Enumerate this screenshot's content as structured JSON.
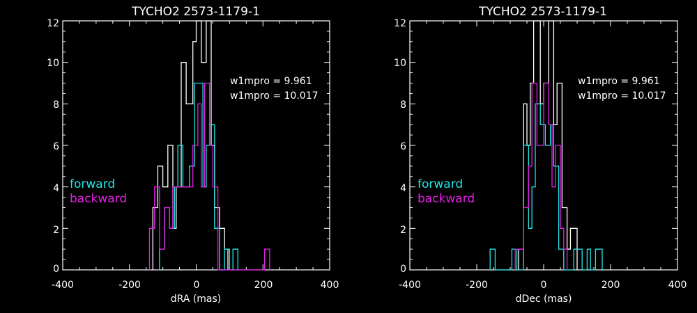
{
  "chart_data": [
    {
      "type": "histogram",
      "title": "TYCHO2 2573-1179-1",
      "xlabel": "dRA (mas)",
      "ylabel": "",
      "xlim": [
        -400,
        400
      ],
      "ylim": [
        0,
        12
      ],
      "xticks": [
        "-400",
        "-200",
        "0",
        "200",
        "400"
      ],
      "yticks": [
        "0",
        "2",
        "4",
        "6",
        "8",
        "10",
        "12"
      ],
      "annotations": [
        "w1mpro = 9.961",
        "w1mpro = 10.017"
      ],
      "legend": [
        {
          "label": "forward",
          "color": "#22e6e6"
        },
        {
          "label": "backward",
          "color": "#e61ee6"
        }
      ],
      "bin_width": 15,
      "series": [
        {
          "color": "#ffffff",
          "steps": [
            [
              -130,
              0
            ],
            [
              -130,
              3
            ],
            [
              -115,
              3
            ],
            [
              -115,
              5
            ],
            [
              -100,
              5
            ],
            [
              -100,
              4
            ],
            [
              -85,
              4
            ],
            [
              -85,
              6
            ],
            [
              -70,
              6
            ],
            [
              -70,
              2
            ],
            [
              -60,
              2
            ],
            [
              -60,
              4
            ],
            [
              -45,
              4
            ],
            [
              -45,
              10
            ],
            [
              -30,
              10
            ],
            [
              -30,
              8
            ],
            [
              -10,
              8
            ],
            [
              -10,
              11
            ],
            [
              0,
              11
            ],
            [
              0,
              12
            ],
            [
              15,
              12
            ],
            [
              15,
              10
            ],
            [
              30,
              10
            ],
            [
              30,
              12
            ],
            [
              45,
              12
            ],
            [
              45,
              6
            ],
            [
              55,
              6
            ],
            [
              55,
              3
            ],
            [
              70,
              3
            ],
            [
              70,
              2
            ],
            [
              85,
              2
            ],
            [
              85,
              1
            ],
            [
              95,
              1
            ],
            [
              95,
              0
            ]
          ]
        },
        {
          "name": "forward",
          "color": "#22e6e6",
          "steps": [
            [
              -110,
              0
            ],
            [
              -110,
              1
            ],
            [
              -95,
              1
            ],
            [
              -95,
              3
            ],
            [
              -80,
              3
            ],
            [
              -80,
              2
            ],
            [
              -65,
              2
            ],
            [
              -65,
              4
            ],
            [
              -55,
              4
            ],
            [
              -55,
              6
            ],
            [
              -40,
              6
            ],
            [
              -40,
              4
            ],
            [
              -20,
              4
            ],
            [
              -20,
              5
            ],
            [
              -5,
              5
            ],
            [
              -5,
              9
            ],
            [
              20,
              9
            ],
            [
              20,
              4
            ],
            [
              30,
              4
            ],
            [
              30,
              6
            ],
            [
              40,
              6
            ],
            [
              40,
              7
            ],
            [
              55,
              7
            ],
            [
              55,
              2
            ],
            [
              70,
              2
            ],
            [
              70,
              0
            ],
            [
              85,
              0
            ],
            [
              85,
              1
            ],
            [
              100,
              1
            ],
            [
              100,
              0
            ],
            [
              110,
              0
            ],
            [
              110,
              1
            ],
            [
              125,
              1
            ],
            [
              125,
              0
            ]
          ]
        },
        {
          "name": "backward",
          "color": "#e61ee6",
          "steps": [
            [
              -140,
              0
            ],
            [
              -140,
              2
            ],
            [
              -125,
              2
            ],
            [
              -125,
              4
            ],
            [
              -110,
              4
            ],
            [
              -110,
              1
            ],
            [
              -95,
              1
            ],
            [
              -95,
              3
            ],
            [
              -80,
              3
            ],
            [
              -80,
              2
            ],
            [
              -70,
              2
            ],
            [
              -70,
              4
            ],
            [
              -55,
              4
            ],
            [
              -55,
              4
            ],
            [
              -10,
              4
            ],
            [
              -10,
              6
            ],
            [
              5,
              6
            ],
            [
              5,
              8
            ],
            [
              15,
              8
            ],
            [
              15,
              4
            ],
            [
              25,
              4
            ],
            [
              25,
              9
            ],
            [
              40,
              9
            ],
            [
              40,
              6
            ],
            [
              50,
              6
            ],
            [
              50,
              4
            ],
            [
              65,
              4
            ],
            [
              65,
              0
            ],
            [
              205,
              0
            ],
            [
              205,
              1
            ],
            [
              220,
              1
            ],
            [
              220,
              0
            ]
          ]
        }
      ]
    },
    {
      "type": "histogram",
      "title": "TYCHO2 2573-1179-1",
      "xlabel": "dDec (mas)",
      "ylabel": "",
      "xlim": [
        -400,
        400
      ],
      "ylim": [
        0,
        12
      ],
      "xticks": [
        "-400",
        "-200",
        "0",
        "200",
        "400"
      ],
      "yticks": [
        "0",
        "2",
        "4",
        "6",
        "8",
        "10",
        "12"
      ],
      "annotations": [
        "w1mpro = 9.961",
        "w1mpro = 10.017"
      ],
      "legend": [
        {
          "label": "forward",
          "color": "#22e6e6"
        },
        {
          "label": "backward",
          "color": "#e61ee6"
        }
      ],
      "bin_width": 15,
      "series": [
        {
          "color": "#ffffff",
          "steps": [
            [
              -75,
              0
            ],
            [
              -75,
              1
            ],
            [
              -60,
              1
            ],
            [
              -60,
              8
            ],
            [
              -50,
              8
            ],
            [
              -50,
              6
            ],
            [
              -40,
              6
            ],
            [
              -40,
              9
            ],
            [
              -30,
              9
            ],
            [
              -30,
              13
            ],
            [
              -10,
              13
            ],
            [
              -10,
              8
            ],
            [
              0,
              8
            ],
            [
              0,
              9
            ],
            [
              15,
              9
            ],
            [
              15,
              13
            ],
            [
              30,
              13
            ],
            [
              30,
              7
            ],
            [
              40,
              7
            ],
            [
              40,
              9
            ],
            [
              55,
              9
            ],
            [
              55,
              3
            ],
            [
              70,
              3
            ],
            [
              70,
              1
            ],
            [
              80,
              1
            ],
            [
              80,
              2
            ],
            [
              100,
              2
            ],
            [
              100,
              0
            ]
          ]
        },
        {
          "name": "forward",
          "color": "#22e6e6",
          "steps": [
            [
              -160,
              0
            ],
            [
              -160,
              1
            ],
            [
              -145,
              1
            ],
            [
              -145,
              0
            ],
            [
              -95,
              0
            ],
            [
              -95,
              1
            ],
            [
              -80,
              1
            ],
            [
              -80,
              0
            ],
            [
              -60,
              0
            ],
            [
              -60,
              6
            ],
            [
              -45,
              6
            ],
            [
              -45,
              2
            ],
            [
              -35,
              2
            ],
            [
              -35,
              4
            ],
            [
              -25,
              4
            ],
            [
              -25,
              8
            ],
            [
              -10,
              8
            ],
            [
              -10,
              7
            ],
            [
              5,
              7
            ],
            [
              5,
              6
            ],
            [
              20,
              6
            ],
            [
              20,
              7
            ],
            [
              30,
              7
            ],
            [
              30,
              5
            ],
            [
              45,
              5
            ],
            [
              45,
              1
            ],
            [
              60,
              1
            ],
            [
              60,
              0
            ],
            [
              90,
              0
            ],
            [
              90,
              1
            ],
            [
              115,
              1
            ],
            [
              115,
              0
            ],
            [
              130,
              0
            ],
            [
              130,
              1
            ],
            [
              140,
              1
            ],
            [
              140,
              0
            ],
            [
              155,
              0
            ],
            [
              155,
              1
            ],
            [
              175,
              1
            ],
            [
              175,
              0
            ]
          ]
        },
        {
          "name": "backward",
          "color": "#e61ee6",
          "steps": [
            [
              -85,
              0
            ],
            [
              -85,
              1
            ],
            [
              -70,
              1
            ],
            [
              -70,
              1
            ],
            [
              -60,
              1
            ],
            [
              -60,
              3
            ],
            [
              -45,
              3
            ],
            [
              -45,
              5
            ],
            [
              -35,
              5
            ],
            [
              -35,
              9
            ],
            [
              -20,
              9
            ],
            [
              -20,
              6
            ],
            [
              -10,
              6
            ],
            [
              -10,
              6
            ],
            [
              0,
              6
            ],
            [
              0,
              9
            ],
            [
              15,
              9
            ],
            [
              15,
              7
            ],
            [
              25,
              7
            ],
            [
              25,
              4
            ],
            [
              35,
              4
            ],
            [
              35,
              6
            ],
            [
              50,
              6
            ],
            [
              50,
              2
            ],
            [
              60,
              2
            ],
            [
              60,
              1
            ],
            [
              70,
              1
            ],
            [
              70,
              0
            ]
          ]
        }
      ]
    }
  ]
}
